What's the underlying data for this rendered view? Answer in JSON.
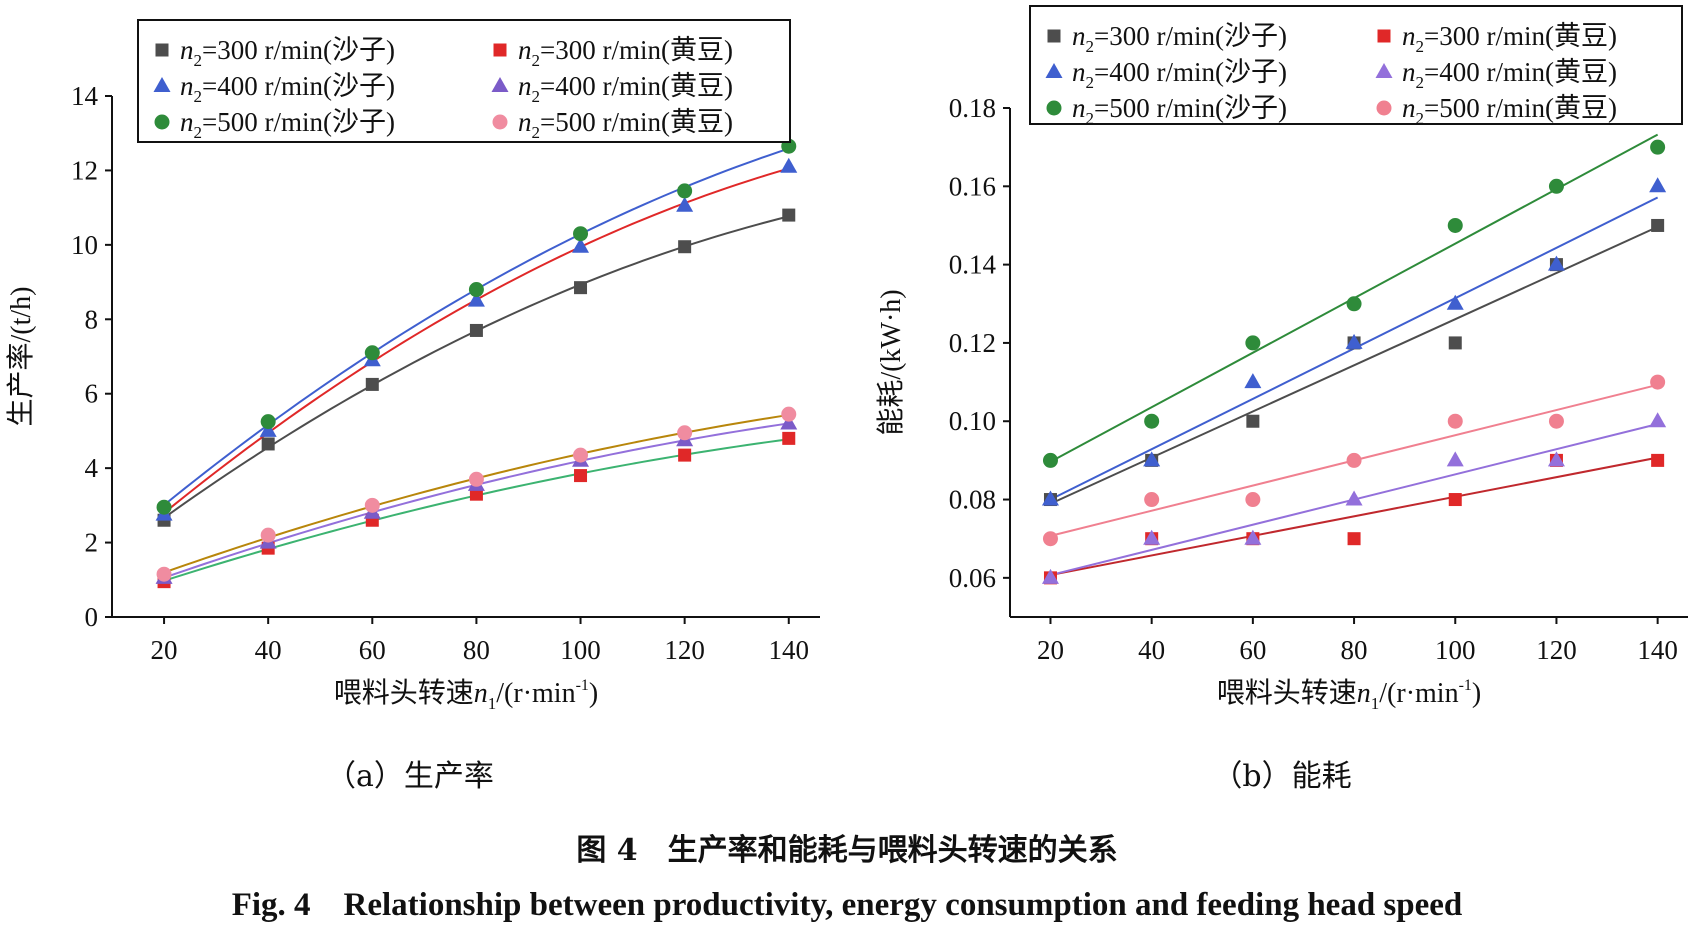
{
  "chart_data": [
    {
      "type": "scatter",
      "subtitle": "（a）生产率",
      "xlabel": "喂料头转速n1/(r·min-1)",
      "ylabel": "生产率/(t/h)",
      "xlim": [
        10,
        146
      ],
      "ylim": [
        0,
        14
      ],
      "xticks": [
        "20",
        "40",
        "60",
        "80",
        "100",
        "120",
        "140"
      ],
      "yticks": [
        "0",
        "2",
        "4",
        "6",
        "8",
        "10",
        "12",
        "14"
      ],
      "legend_position": "top",
      "x": [
        20,
        40,
        60,
        80,
        100,
        120,
        140
      ],
      "series": [
        {
          "name": "n2=300 r/min(沙子)",
          "marker": "square",
          "color": "#4d4d4d",
          "line_color": "#4d4d4d",
          "values": [
            2.6,
            4.65,
            6.25,
            7.7,
            8.85,
            9.95,
            10.8
          ]
        },
        {
          "name": "n2=300 r/min(黄豆)",
          "marker": "square",
          "color": "#e02828",
          "line_color": "#3cb371",
          "values": [
            0.95,
            1.85,
            2.6,
            3.3,
            3.8,
            4.35,
            4.8
          ]
        },
        {
          "name": "n2=400 r/min(沙子)",
          "marker": "triangle",
          "color": "#3f5fcf",
          "line_color": "#e02828",
          "values": [
            2.75,
            5.0,
            6.9,
            8.5,
            9.95,
            11.05,
            12.1
          ]
        },
        {
          "name": "n2=400 r/min(黄豆)",
          "marker": "triangle",
          "color": "#7b5bc8",
          "line_color": "#9370db",
          "values": [
            1.05,
            2.0,
            2.8,
            3.55,
            4.2,
            4.75,
            5.2
          ]
        },
        {
          "name": "n2=500 r/min(沙子)",
          "marker": "circle",
          "color": "#2e8b3a",
          "line_color": "#3f5fcf",
          "values": [
            2.95,
            5.25,
            7.1,
            8.8,
            10.3,
            11.45,
            12.65
          ]
        },
        {
          "name": "n2=500 r/min(黄豆)",
          "marker": "circle",
          "color": "#f08ca0",
          "line_color": "#b8860b",
          "values": [
            1.15,
            2.2,
            3.0,
            3.7,
            4.35,
            4.95,
            5.45
          ]
        }
      ]
    },
    {
      "type": "scatter",
      "subtitle": "（b）能耗",
      "xlabel": "喂料头转速n1/(r·min-1)",
      "ylabel": "能耗/(kW·h)",
      "xlim": [
        12,
        146
      ],
      "ylim": [
        0.05,
        0.18
      ],
      "xticks": [
        "20",
        "40",
        "60",
        "80",
        "100",
        "120",
        "140"
      ],
      "yticks": [
        "0.06",
        "0.08",
        "0.10",
        "0.12",
        "0.14",
        "0.16",
        "0.18"
      ],
      "legend_position": "top",
      "x": [
        20,
        40,
        60,
        80,
        100,
        120,
        140
      ],
      "series": [
        {
          "name": "n2=300 r/min(沙子)",
          "marker": "square",
          "color": "#4d4d4d",
          "line_color": "#4d4d4d",
          "values": [
            0.08,
            0.09,
            0.1,
            0.12,
            0.12,
            0.14,
            0.15
          ]
        },
        {
          "name": "n2=300 r/min(黄豆)",
          "marker": "square",
          "color": "#e02828",
          "line_color": "#c0282d",
          "values": [
            0.06,
            0.07,
            0.07,
            0.07,
            0.08,
            0.09,
            0.09
          ]
        },
        {
          "name": "n2=400 r/min(沙子)",
          "marker": "triangle",
          "color": "#3f5fcf",
          "line_color": "#3f5fcf",
          "values": [
            0.08,
            0.09,
            0.11,
            0.12,
            0.13,
            0.14,
            0.16
          ]
        },
        {
          "name": "n2=400 r/min(黄豆)",
          "marker": "triangle",
          "color": "#9370db",
          "line_color": "#9370db",
          "values": [
            0.06,
            0.07,
            0.07,
            0.08,
            0.09,
            0.09,
            0.1
          ]
        },
        {
          "name": "n2=500 r/min(沙子)",
          "marker": "circle",
          "color": "#2e8b3a",
          "line_color": "#2e8b3a",
          "values": [
            0.09,
            0.1,
            0.12,
            0.13,
            0.15,
            0.16,
            0.17
          ]
        },
        {
          "name": "n2=500 r/min(黄豆)",
          "marker": "circle",
          "color": "#f08090",
          "line_color": "#f08090",
          "values": [
            0.07,
            0.08,
            0.08,
            0.09,
            0.1,
            0.1,
            0.11
          ]
        }
      ]
    }
  ],
  "figure": {
    "caption_cn": "图 4　生产率和能耗与喂料头转速的关系",
    "caption_en": "Fig. 4　Relationship between productivity, energy consumption and feeding head speed"
  }
}
